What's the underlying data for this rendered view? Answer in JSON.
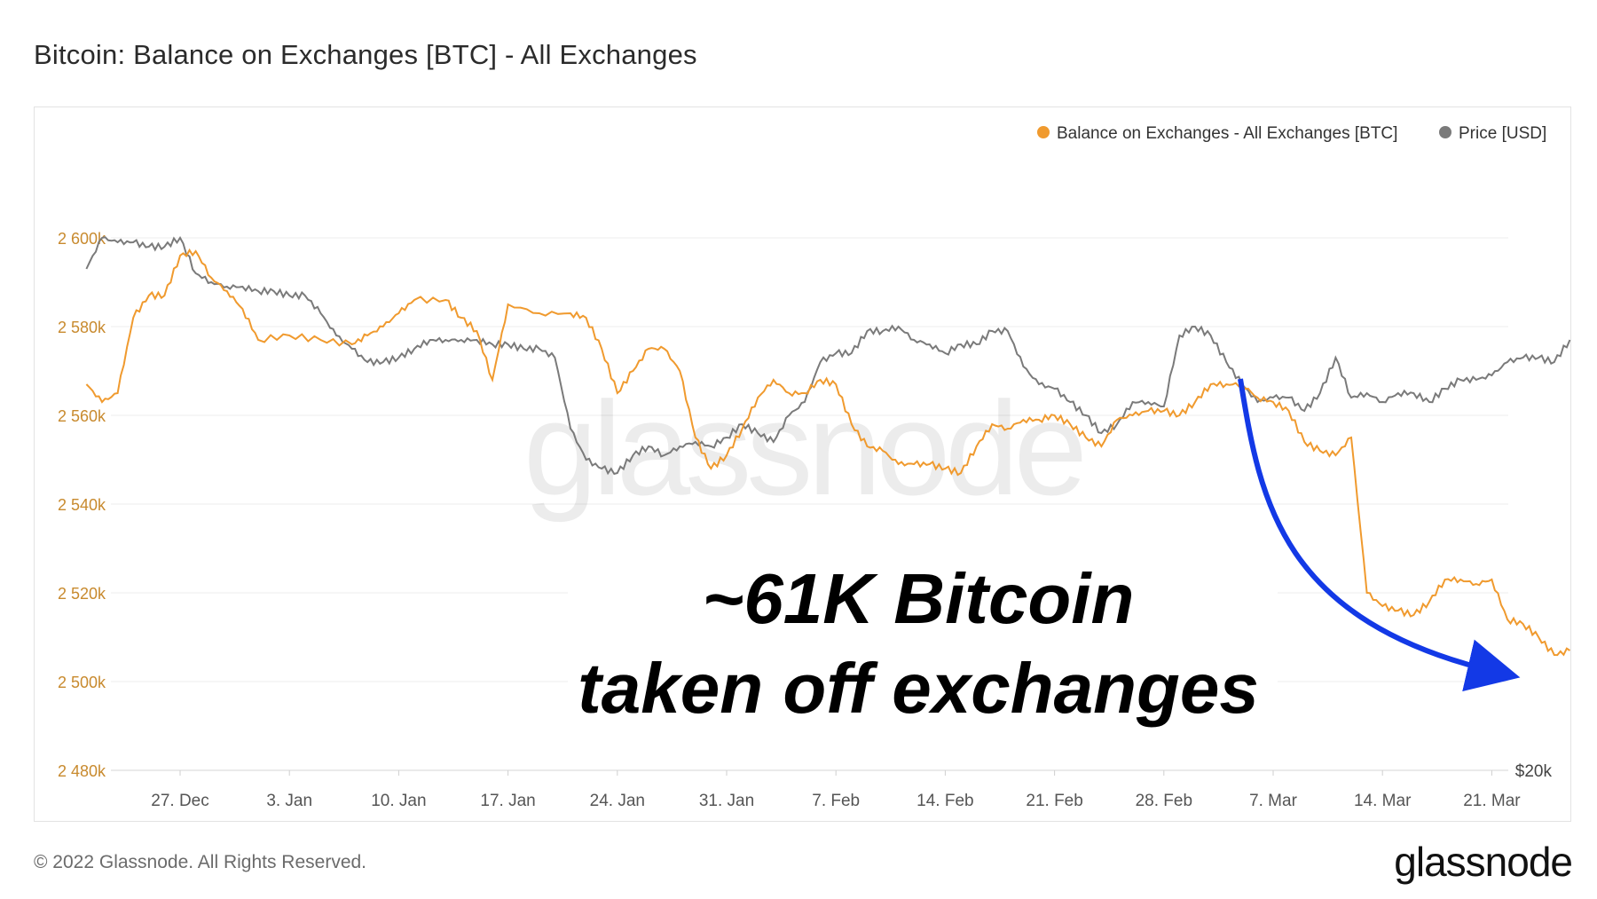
{
  "header": {
    "title": "Bitcoin: Balance on Exchanges [BTC] - All Exchanges"
  },
  "footer": {
    "copyright": "© 2022 Glassnode. All Rights Reserved.",
    "brand": "glassnode"
  },
  "watermark": "glassnode",
  "colors": {
    "balance": "#f09a2e",
    "price": "#7a7a7a",
    "arrow": "#1339e6",
    "axis_text": "#c88a2e"
  },
  "chart_data": {
    "type": "line",
    "legend": {
      "position": "top-right",
      "items": [
        {
          "label": "Balance on Exchanges - All Exchanges [BTC]",
          "color": "#f09a2e"
        },
        {
          "label": "Price [USD]",
          "color": "#7a7a7a"
        }
      ]
    },
    "x_ticks": [
      "27. Dec",
      "3. Jan",
      "10. Jan",
      "17. Jan",
      "24. Jan",
      "31. Jan",
      "7. Feb",
      "14. Feb",
      "21. Feb",
      "28. Feb",
      "7. Mar",
      "14. Mar",
      "21. Mar"
    ],
    "y_ticks": [
      "2 600k",
      "2 580k",
      "2 560k",
      "2 540k",
      "2 520k",
      "2 500k",
      "2 480k"
    ],
    "y_tick_values": [
      2600,
      2580,
      2560,
      2540,
      2520,
      2500,
      2480
    ],
    "ylim": [
      2480,
      2620
    ],
    "right_axis_label": "$20k",
    "annotation": {
      "line1": "~61K Bitcoin",
      "line2": "taken off exchanges"
    },
    "series": [
      {
        "name": "Balance on Exchanges - All Exchanges [BTC]",
        "unit": "k BTC",
        "points": [
          [
            "2021-12-21",
            2567
          ],
          [
            "2021-12-22",
            2563
          ],
          [
            "2021-12-23",
            2565
          ],
          [
            "2021-12-24",
            2582
          ],
          [
            "2021-12-25",
            2587
          ],
          [
            "2021-12-26",
            2587
          ],
          [
            "2021-12-27",
            2596
          ],
          [
            "2021-12-28",
            2597
          ],
          [
            "2021-12-29",
            2591
          ],
          [
            "2021-12-30",
            2588
          ],
          [
            "2021-12-31",
            2584
          ],
          [
            "2022-01-01",
            2577
          ],
          [
            "2022-01-03",
            2578
          ],
          [
            "2022-01-05",
            2577
          ],
          [
            "2022-01-07",
            2576
          ],
          [
            "2022-01-08",
            2578
          ],
          [
            "2022-01-09",
            2580
          ],
          [
            "2022-01-10",
            2583
          ],
          [
            "2022-01-11",
            2586
          ],
          [
            "2022-01-13",
            2586
          ],
          [
            "2022-01-14",
            2582
          ],
          [
            "2022-01-15",
            2579
          ],
          [
            "2022-01-16",
            2568
          ],
          [
            "2022-01-17",
            2585
          ],
          [
            "2022-01-19",
            2583
          ],
          [
            "2022-01-21",
            2583
          ],
          [
            "2022-01-22",
            2582
          ],
          [
            "2022-01-23",
            2575
          ],
          [
            "2022-01-24",
            2565
          ],
          [
            "2022-01-25",
            2570
          ],
          [
            "2022-01-26",
            2575
          ],
          [
            "2022-01-27",
            2575
          ],
          [
            "2022-01-28",
            2570
          ],
          [
            "2022-01-29",
            2555
          ],
          [
            "2022-01-30",
            2548
          ],
          [
            "2022-01-31",
            2551
          ],
          [
            "2022-02-01",
            2557
          ],
          [
            "2022-02-02",
            2564
          ],
          [
            "2022-02-03",
            2568
          ],
          [
            "2022-02-04",
            2565
          ],
          [
            "2022-02-05",
            2565
          ],
          [
            "2022-02-06",
            2568
          ],
          [
            "2022-02-07",
            2567
          ],
          [
            "2022-02-08",
            2558
          ],
          [
            "2022-02-09",
            2553
          ],
          [
            "2022-02-10",
            2552
          ],
          [
            "2022-02-11",
            2549
          ],
          [
            "2022-02-12",
            2549
          ],
          [
            "2022-02-13",
            2549
          ],
          [
            "2022-02-14",
            2548
          ],
          [
            "2022-02-15",
            2547
          ],
          [
            "2022-02-16",
            2553
          ],
          [
            "2022-02-17",
            2558
          ],
          [
            "2022-02-18",
            2557
          ],
          [
            "2022-02-19",
            2559
          ],
          [
            "2022-02-20",
            2559
          ],
          [
            "2022-02-21",
            2560
          ],
          [
            "2022-02-22",
            2558
          ],
          [
            "2022-02-23",
            2555
          ],
          [
            "2022-02-24",
            2553
          ],
          [
            "2022-02-25",
            2559
          ],
          [
            "2022-02-26",
            2560
          ],
          [
            "2022-02-27",
            2561
          ],
          [
            "2022-02-28",
            2561
          ],
          [
            "2022-03-01",
            2560
          ],
          [
            "2022-03-02",
            2563
          ],
          [
            "2022-03-03",
            2567
          ],
          [
            "2022-03-04",
            2567
          ],
          [
            "2022-03-05",
            2567
          ],
          [
            "2022-03-06",
            2564
          ],
          [
            "2022-03-07",
            2563
          ],
          [
            "2022-03-08",
            2561
          ],
          [
            "2022-03-09",
            2554
          ],
          [
            "2022-03-10",
            2552
          ],
          [
            "2022-03-11",
            2551
          ],
          [
            "2022-03-12",
            2555
          ],
          [
            "2022-03-13",
            2520
          ],
          [
            "2022-03-14",
            2517
          ],
          [
            "2022-03-15",
            2516
          ],
          [
            "2022-03-16",
            2515
          ],
          [
            "2022-03-17",
            2518
          ],
          [
            "2022-03-18",
            2523
          ],
          [
            "2022-03-19",
            2523
          ],
          [
            "2022-03-20",
            2522
          ],
          [
            "2022-03-21",
            2523
          ],
          [
            "2022-03-22",
            2514
          ],
          [
            "2022-03-23",
            2513
          ],
          [
            "2022-03-24",
            2510
          ],
          [
            "2022-03-25",
            2506
          ],
          [
            "2022-03-26",
            2507
          ]
        ]
      },
      {
        "name": "Price [USD]",
        "unit": "k BTC (plotted on balance scale)",
        "points": [
          [
            "2021-12-21",
            2593
          ],
          [
            "2021-12-22",
            2600
          ],
          [
            "2021-12-23",
            2599
          ],
          [
            "2021-12-24",
            2599
          ],
          [
            "2021-12-25",
            2598
          ],
          [
            "2021-12-26",
            2598
          ],
          [
            "2021-12-27",
            2600
          ],
          [
            "2021-12-28",
            2592
          ],
          [
            "2021-12-29",
            2590
          ],
          [
            "2021-12-30",
            2589
          ],
          [
            "2021-12-31",
            2589
          ],
          [
            "2022-01-01",
            2588
          ],
          [
            "2022-01-02",
            2588
          ],
          [
            "2022-01-03",
            2587
          ],
          [
            "2022-01-04",
            2587
          ],
          [
            "2022-01-05",
            2583
          ],
          [
            "2022-01-06",
            2578
          ],
          [
            "2022-01-07",
            2575
          ],
          [
            "2022-01-08",
            2572
          ],
          [
            "2022-01-09",
            2572
          ],
          [
            "2022-01-10",
            2573
          ],
          [
            "2022-01-11",
            2575
          ],
          [
            "2022-01-12",
            2577
          ],
          [
            "2022-01-13",
            2577
          ],
          [
            "2022-01-14",
            2577
          ],
          [
            "2022-01-15",
            2577
          ],
          [
            "2022-01-16",
            2576
          ],
          [
            "2022-01-17",
            2576
          ],
          [
            "2022-01-18",
            2575
          ],
          [
            "2022-01-19",
            2575
          ],
          [
            "2022-01-20",
            2573
          ],
          [
            "2022-01-21",
            2557
          ],
          [
            "2022-01-22",
            2550
          ],
          [
            "2022-01-23",
            2548
          ],
          [
            "2022-01-24",
            2547
          ],
          [
            "2022-01-25",
            2551
          ],
          [
            "2022-01-26",
            2553
          ],
          [
            "2022-01-27",
            2551
          ],
          [
            "2022-01-28",
            2553
          ],
          [
            "2022-01-29",
            2554
          ],
          [
            "2022-01-30",
            2553
          ],
          [
            "2022-01-31",
            2555
          ],
          [
            "2022-02-01",
            2558
          ],
          [
            "2022-02-02",
            2556
          ],
          [
            "2022-02-03",
            2554
          ],
          [
            "2022-02-04",
            2560
          ],
          [
            "2022-02-05",
            2563
          ],
          [
            "2022-02-06",
            2572
          ],
          [
            "2022-02-07",
            2574
          ],
          [
            "2022-02-08",
            2574
          ],
          [
            "2022-02-09",
            2579
          ],
          [
            "2022-02-10",
            2579
          ],
          [
            "2022-02-11",
            2580
          ],
          [
            "2022-02-12",
            2577
          ],
          [
            "2022-02-13",
            2576
          ],
          [
            "2022-02-14",
            2574
          ],
          [
            "2022-02-15",
            2576
          ],
          [
            "2022-02-16",
            2576
          ],
          [
            "2022-02-17",
            2579
          ],
          [
            "2022-02-18",
            2579
          ],
          [
            "2022-02-19",
            2571
          ],
          [
            "2022-02-20",
            2567
          ],
          [
            "2022-02-21",
            2566
          ],
          [
            "2022-02-22",
            2563
          ],
          [
            "2022-02-23",
            2560
          ],
          [
            "2022-02-24",
            2556
          ],
          [
            "2022-02-25",
            2558
          ],
          [
            "2022-02-26",
            2563
          ],
          [
            "2022-02-27",
            2563
          ],
          [
            "2022-02-28",
            2562
          ],
          [
            "2022-03-01",
            2578
          ],
          [
            "2022-03-02",
            2580
          ],
          [
            "2022-03-03",
            2578
          ],
          [
            "2022-03-04",
            2572
          ],
          [
            "2022-03-05",
            2567
          ],
          [
            "2022-03-06",
            2563
          ],
          [
            "2022-03-07",
            2564
          ],
          [
            "2022-03-08",
            2564
          ],
          [
            "2022-03-09",
            2561
          ],
          [
            "2022-03-10",
            2565
          ],
          [
            "2022-03-11",
            2573
          ],
          [
            "2022-03-12",
            2564
          ],
          [
            "2022-03-13",
            2565
          ],
          [
            "2022-03-14",
            2563
          ],
          [
            "2022-03-15",
            2565
          ],
          [
            "2022-03-16",
            2565
          ],
          [
            "2022-03-17",
            2563
          ],
          [
            "2022-03-18",
            2566
          ],
          [
            "2022-03-19",
            2568
          ],
          [
            "2022-03-20",
            2568
          ],
          [
            "2022-03-21",
            2569
          ],
          [
            "2022-03-22",
            2572
          ],
          [
            "2022-03-23",
            2573
          ],
          [
            "2022-03-24",
            2573
          ],
          [
            "2022-03-25",
            2572
          ],
          [
            "2022-03-26",
            2577
          ]
        ]
      }
    ]
  }
}
